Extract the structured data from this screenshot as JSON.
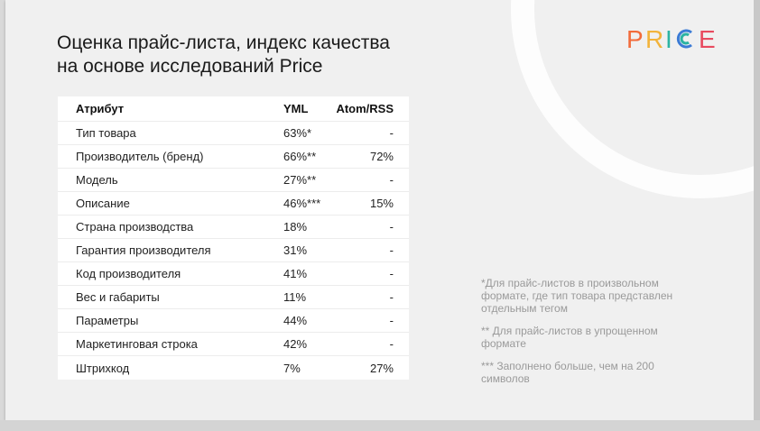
{
  "title": {
    "line1": "Оценка прайс-листа, индекс качества",
    "line2": "на основе исследований Price"
  },
  "logo": {
    "text": "PRICE",
    "colors": [
      "#f26b3a",
      "#f2b33a",
      "#2bb3a3",
      "#3a7bd5",
      "#e84a5f"
    ]
  },
  "table": {
    "headers": {
      "attribute": "Атрибут",
      "yml": "YML",
      "atom": "Atom/RSS"
    },
    "rows": [
      {
        "attribute": "Тип товара",
        "yml": "63%*",
        "atom": "-"
      },
      {
        "attribute": "Производитель (бренд)",
        "yml": "66%**",
        "atom": "72%"
      },
      {
        "attribute": "Модель",
        "yml": "27%**",
        "atom": "-"
      },
      {
        "attribute": "Описание",
        "yml": "46%***",
        "atom": "15%"
      },
      {
        "attribute": "Страна производства",
        "yml": "18%",
        "atom": "-"
      },
      {
        "attribute": "Гарантия производителя",
        "yml": "31%",
        "atom": "-"
      },
      {
        "attribute": "Код производителя",
        "yml": "41%",
        "atom": "-"
      },
      {
        "attribute": "Вес и габариты",
        "yml": "11%",
        "atom": "-"
      },
      {
        "attribute": "Параметры",
        "yml": "44%",
        "atom": "-"
      },
      {
        "attribute": "Маркетинговая строка",
        "yml": "42%",
        "atom": "-"
      },
      {
        "attribute": "Штрихкод",
        "yml": "7%",
        "atom": "27%"
      }
    ]
  },
  "notes": [
    "*Для прайс-листов в произвольном формате, где тип товара представлен отдельным тегом",
    "** Для прайс-листов в упрощенном формате",
    "*** Заполнено больше, чем на 200 символов"
  ]
}
